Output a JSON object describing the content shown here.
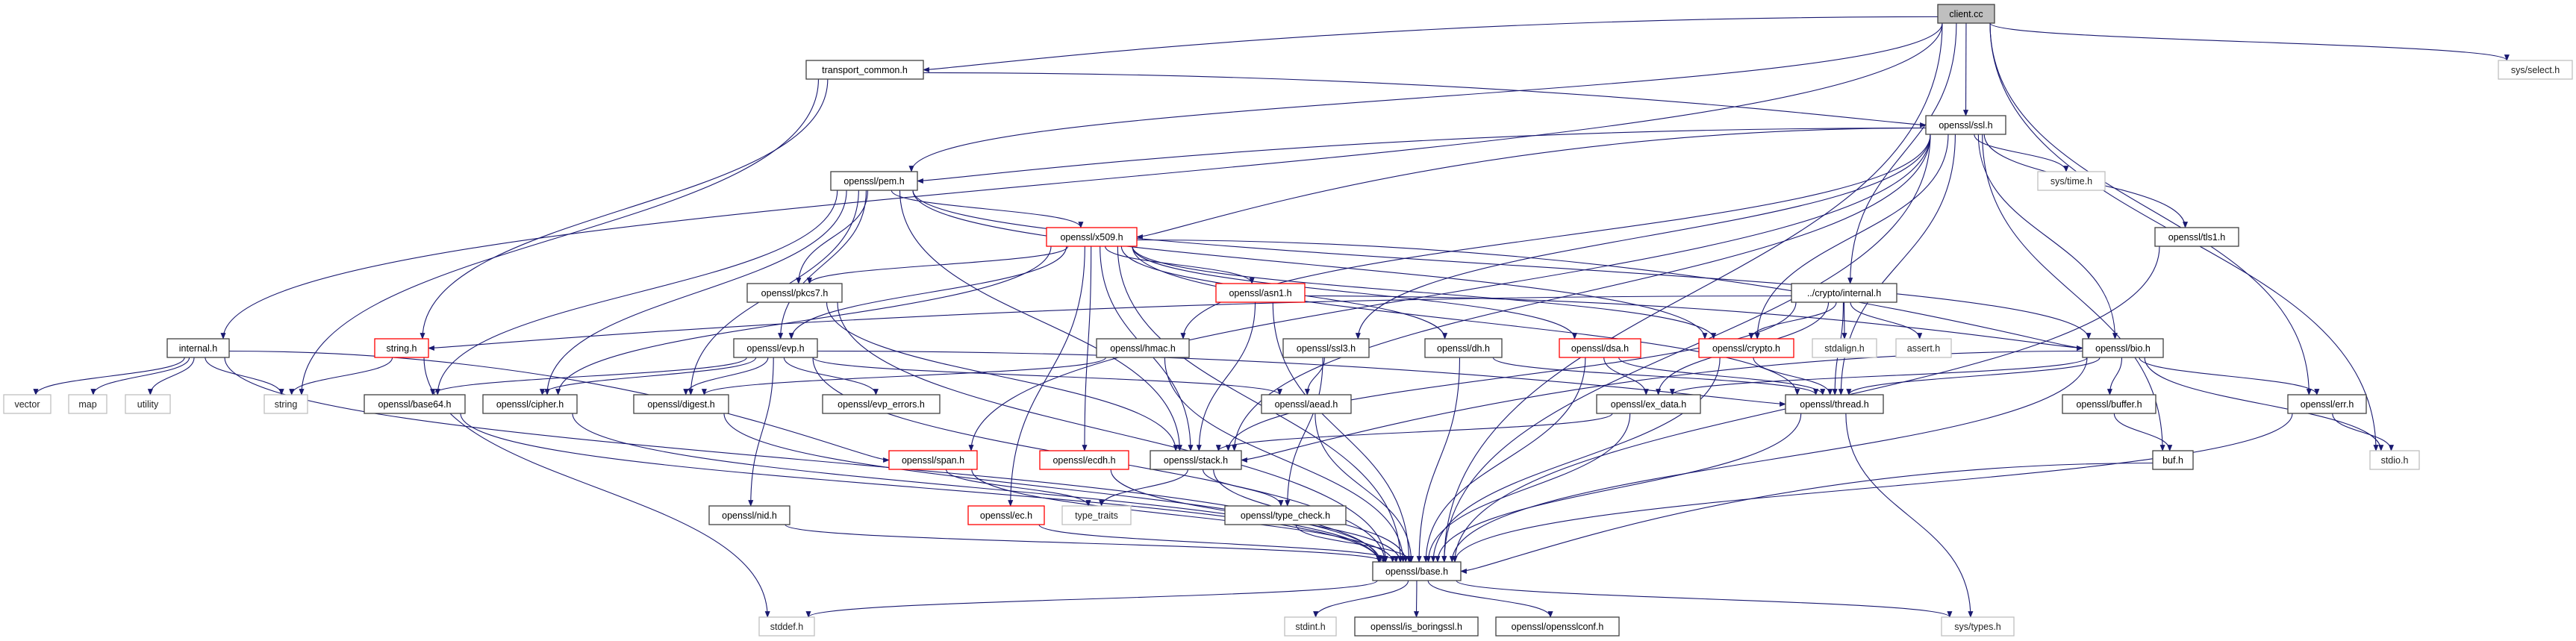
{
  "graph": {
    "colors": {
      "edge": "#191970",
      "root_fill": "#bfbfbf",
      "incomplete_border": "#ff0000",
      "external_border": "#bfbfbf",
      "node_border": "#404040"
    },
    "nodes": [
      {
        "id": "client",
        "label": "client.cc",
        "kind": "root"
      },
      {
        "id": "transport",
        "label": "transport_common.h",
        "kind": "normal"
      },
      {
        "id": "select",
        "label": "sys/select.h",
        "kind": "external"
      },
      {
        "id": "ssl",
        "label": "openssl/ssl.h",
        "kind": "normal"
      },
      {
        "id": "pem",
        "label": "openssl/pem.h",
        "kind": "normal"
      },
      {
        "id": "time",
        "label": "sys/time.h",
        "kind": "external"
      },
      {
        "id": "x509",
        "label": "openssl/x509.h",
        "kind": "incomplete"
      },
      {
        "id": "tls1",
        "label": "openssl/tls1.h",
        "kind": "normal"
      },
      {
        "id": "pkcs7",
        "label": "openssl/pkcs7.h",
        "kind": "normal"
      },
      {
        "id": "asn1",
        "label": "openssl/asn1.h",
        "kind": "incomplete"
      },
      {
        "id": "cinternal",
        "label": "../crypto/internal.h",
        "kind": "normal"
      },
      {
        "id": "internal",
        "label": "internal.h",
        "kind": "normal"
      },
      {
        "id": "stringh",
        "label": "string.h",
        "kind": "incomplete"
      },
      {
        "id": "evp",
        "label": "openssl/evp.h",
        "kind": "normal"
      },
      {
        "id": "hmac",
        "label": "openssl/hmac.h",
        "kind": "normal"
      },
      {
        "id": "ssl3",
        "label": "openssl/ssl3.h",
        "kind": "normal"
      },
      {
        "id": "dh",
        "label": "openssl/dh.h",
        "kind": "normal"
      },
      {
        "id": "dsa",
        "label": "openssl/dsa.h",
        "kind": "incomplete"
      },
      {
        "id": "crypto",
        "label": "openssl/crypto.h",
        "kind": "incomplete"
      },
      {
        "id": "stdalign",
        "label": "stdalign.h",
        "kind": "external"
      },
      {
        "id": "assert",
        "label": "assert.h",
        "kind": "external"
      },
      {
        "id": "bio",
        "label": "openssl/bio.h",
        "kind": "normal"
      },
      {
        "id": "vector",
        "label": "vector",
        "kind": "external"
      },
      {
        "id": "map",
        "label": "map",
        "kind": "external"
      },
      {
        "id": "utility",
        "label": "utility",
        "kind": "external"
      },
      {
        "id": "string",
        "label": "string",
        "kind": "external"
      },
      {
        "id": "base64",
        "label": "openssl/base64.h",
        "kind": "normal"
      },
      {
        "id": "cipher",
        "label": "openssl/cipher.h",
        "kind": "normal"
      },
      {
        "id": "digest",
        "label": "openssl/digest.h",
        "kind": "normal"
      },
      {
        "id": "evperr",
        "label": "openssl/evp_errors.h",
        "kind": "normal"
      },
      {
        "id": "aead",
        "label": "openssl/aead.h",
        "kind": "normal"
      },
      {
        "id": "exdata",
        "label": "openssl/ex_data.h",
        "kind": "normal"
      },
      {
        "id": "thread",
        "label": "openssl/thread.h",
        "kind": "normal"
      },
      {
        "id": "buffer",
        "label": "openssl/buffer.h",
        "kind": "normal"
      },
      {
        "id": "err",
        "label": "openssl/err.h",
        "kind": "normal"
      },
      {
        "id": "span",
        "label": "openssl/span.h",
        "kind": "incomplete"
      },
      {
        "id": "ecdh",
        "label": "openssl/ecdh.h",
        "kind": "incomplete"
      },
      {
        "id": "stack",
        "label": "openssl/stack.h",
        "kind": "normal"
      },
      {
        "id": "buf",
        "label": "buf.h",
        "kind": "normal"
      },
      {
        "id": "stdio",
        "label": "stdio.h",
        "kind": "external"
      },
      {
        "id": "nid",
        "label": "openssl/nid.h",
        "kind": "normal"
      },
      {
        "id": "ec",
        "label": "openssl/ec.h",
        "kind": "incomplete"
      },
      {
        "id": "typetraits",
        "label": "type_traits",
        "kind": "external"
      },
      {
        "id": "typecheck",
        "label": "openssl/type_check.h",
        "kind": "normal"
      },
      {
        "id": "base",
        "label": "openssl/base.h",
        "kind": "normal"
      },
      {
        "id": "stddef",
        "label": "stddef.h",
        "kind": "external"
      },
      {
        "id": "stdint",
        "label": "stdint.h",
        "kind": "external"
      },
      {
        "id": "isboring",
        "label": "openssl/is_boringssl.h",
        "kind": "normal"
      },
      {
        "id": "conf",
        "label": "openssl/opensslconf.h",
        "kind": "normal"
      },
      {
        "id": "systypes",
        "label": "sys/types.h",
        "kind": "external"
      }
    ],
    "edges": [
      [
        "client",
        "transport"
      ],
      [
        "client",
        "select"
      ],
      [
        "client",
        "ssl"
      ],
      [
        "client",
        "pem"
      ],
      [
        "client",
        "internal"
      ],
      [
        "client",
        "cinternal"
      ],
      [
        "client",
        "err"
      ],
      [
        "client",
        "stdio"
      ],
      [
        "client",
        "base"
      ],
      [
        "transport",
        "ssl"
      ],
      [
        "transport",
        "string"
      ],
      [
        "transport",
        "stringh"
      ],
      [
        "ssl",
        "pem"
      ],
      [
        "ssl",
        "x509"
      ],
      [
        "ssl",
        "time"
      ],
      [
        "ssl",
        "tls1"
      ],
      [
        "ssl",
        "hmac"
      ],
      [
        "ssl",
        "ssl3"
      ],
      [
        "ssl",
        "span"
      ],
      [
        "ssl",
        "bio"
      ],
      [
        "ssl",
        "thread"
      ],
      [
        "ssl",
        "buf"
      ],
      [
        "ssl",
        "stack"
      ],
      [
        "ssl",
        "crypto"
      ],
      [
        "ssl",
        "base"
      ],
      [
        "pem",
        "x509"
      ],
      [
        "pem",
        "pkcs7"
      ],
      [
        "pem",
        "evp"
      ],
      [
        "pem",
        "base64"
      ],
      [
        "pem",
        "cipher"
      ],
      [
        "pem",
        "digest"
      ],
      [
        "pem",
        "stack"
      ],
      [
        "pem",
        "bio"
      ],
      [
        "pem",
        "crypto"
      ],
      [
        "x509",
        "asn1"
      ],
      [
        "x509",
        "pkcs7"
      ],
      [
        "x509",
        "evp"
      ],
      [
        "x509",
        "cipher"
      ],
      [
        "x509",
        "bio"
      ],
      [
        "x509",
        "dh"
      ],
      [
        "x509",
        "dsa"
      ],
      [
        "x509",
        "ec"
      ],
      [
        "x509",
        "ecdh"
      ],
      [
        "x509",
        "stack"
      ],
      [
        "x509",
        "thread"
      ],
      [
        "x509",
        "crypto"
      ],
      [
        "x509",
        "base"
      ],
      [
        "asn1",
        "bio"
      ],
      [
        "asn1",
        "stack"
      ],
      [
        "asn1",
        "base"
      ],
      [
        "pkcs7",
        "stack"
      ],
      [
        "pkcs7",
        "base"
      ],
      [
        "cinternal",
        "stringh"
      ],
      [
        "cinternal",
        "crypto"
      ],
      [
        "cinternal",
        "stdalign"
      ],
      [
        "cinternal",
        "assert"
      ],
      [
        "cinternal",
        "thread"
      ],
      [
        "cinternal",
        "exdata"
      ],
      [
        "cinternal",
        "stack"
      ],
      [
        "internal",
        "vector"
      ],
      [
        "internal",
        "map"
      ],
      [
        "internal",
        "utility"
      ],
      [
        "internal",
        "string"
      ],
      [
        "internal",
        "span"
      ],
      [
        "internal",
        "base"
      ],
      [
        "stringh",
        "string"
      ],
      [
        "stringh",
        "stddef"
      ],
      [
        "evp",
        "base64"
      ],
      [
        "evp",
        "cipher"
      ],
      [
        "evp",
        "digest"
      ],
      [
        "evp",
        "evperr"
      ],
      [
        "evp",
        "nid"
      ],
      [
        "evp",
        "aead"
      ],
      [
        "evp",
        "thread"
      ],
      [
        "evp",
        "base"
      ],
      [
        "hmac",
        "digest"
      ],
      [
        "hmac",
        "base"
      ],
      [
        "ssl3",
        "aead"
      ],
      [
        "ssl3",
        "typecheck"
      ],
      [
        "dh",
        "thread"
      ],
      [
        "dh",
        "base"
      ],
      [
        "dsa",
        "exdata"
      ],
      [
        "dsa",
        "thread"
      ],
      [
        "dsa",
        "base"
      ],
      [
        "crypto",
        "thread"
      ],
      [
        "crypto",
        "base"
      ],
      [
        "bio",
        "buffer"
      ],
      [
        "bio",
        "err"
      ],
      [
        "bio",
        "stdio"
      ],
      [
        "bio",
        "thread"
      ],
      [
        "bio",
        "exdata"
      ],
      [
        "bio",
        "stack"
      ],
      [
        "bio",
        "base"
      ],
      [
        "base64",
        "base"
      ],
      [
        "cipher",
        "base"
      ],
      [
        "digest",
        "base"
      ],
      [
        "aead",
        "base"
      ],
      [
        "exdata",
        "stack"
      ],
      [
        "exdata",
        "base"
      ],
      [
        "thread",
        "systypes"
      ],
      [
        "thread",
        "base"
      ],
      [
        "buffer",
        "buf"
      ],
      [
        "err",
        "stdio"
      ],
      [
        "err",
        "base"
      ],
      [
        "buf",
        "base"
      ],
      [
        "tls1",
        "base"
      ],
      [
        "span",
        "typetraits"
      ],
      [
        "span",
        "base"
      ],
      [
        "ecdh",
        "base"
      ],
      [
        "stack",
        "typetraits"
      ],
      [
        "stack",
        "typecheck"
      ],
      [
        "stack",
        "base"
      ],
      [
        "ec",
        "base"
      ],
      [
        "nid",
        "base"
      ],
      [
        "typecheck",
        "base"
      ],
      [
        "base",
        "stddef"
      ],
      [
        "base",
        "stdint"
      ],
      [
        "base",
        "isboring"
      ],
      [
        "base",
        "conf"
      ],
      [
        "base",
        "systypes"
      ]
    ]
  }
}
